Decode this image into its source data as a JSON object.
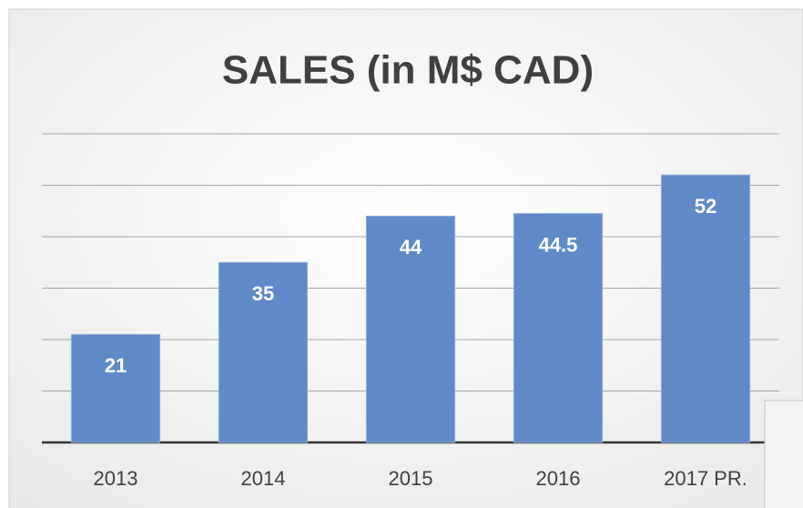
{
  "chart_data": {
    "type": "bar",
    "title": "SALES (in M$ CAD)",
    "categories": [
      "2013",
      "2014",
      "2015",
      "2016",
      "2017 PR."
    ],
    "values": [
      21,
      35,
      44,
      44.5,
      52
    ],
    "color": "#5f8ac7",
    "ylim": [
      0,
      60
    ],
    "yticks": [
      0,
      10,
      20,
      30,
      40,
      50,
      60
    ],
    "grid": true
  }
}
